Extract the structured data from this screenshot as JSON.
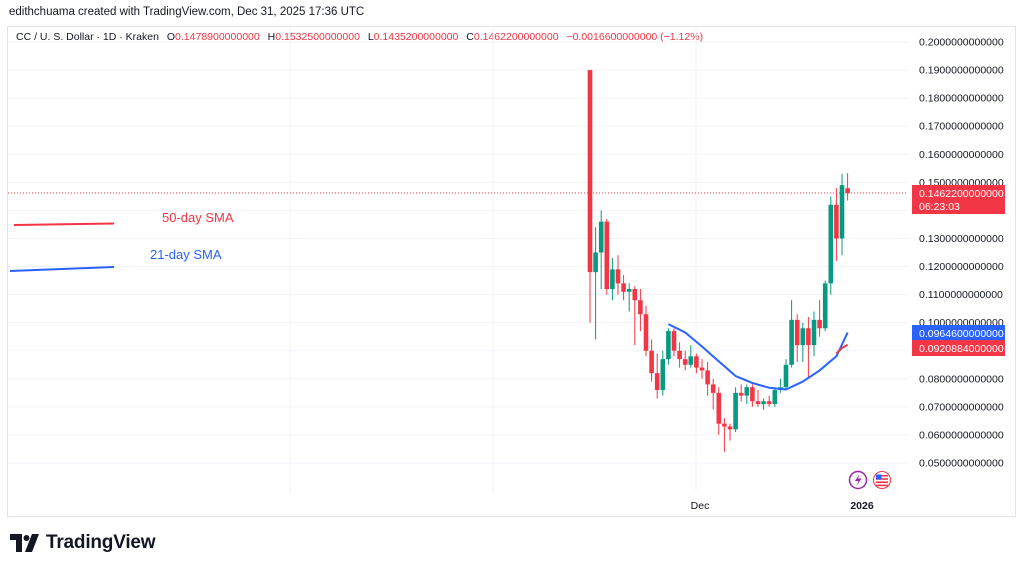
{
  "header": {
    "credit": "edithchuama created with TradingView.com, Dec 31, 2025 17:36 UTC"
  },
  "legend": {
    "symbol": "CC / U. S. Dollar · 1D · Kraken",
    "open_label": "O",
    "open": "0.1478900000000",
    "high_label": "H",
    "high": "0.1532500000000",
    "low_label": "L",
    "low": "0.1435200000000",
    "close_label": "C",
    "close": "0.1462200000000",
    "change": "−0.0016600000000 (−1.12%)"
  },
  "annotations": {
    "sma50_label": "50-day SMA",
    "sma21_label": "21-day SMA"
  },
  "price_badges": {
    "last_price": "0.1462200000000",
    "countdown": "06:23:03",
    "sma21_value": "0.0964600000000",
    "sma50_value": "0.0920884000000"
  },
  "time_labels": [
    "Dec",
    "2026"
  ],
  "brand": {
    "name": "TradingView"
  },
  "icons": [
    "lightning-icon",
    "us-flag-icon"
  ],
  "colors": {
    "up": "#089981",
    "down": "#f23645",
    "sma21": "#2962ff",
    "sma50": "#f23645",
    "badge_blue": "#2962ff"
  },
  "chart_data": {
    "type": "candlestick",
    "y_axis": {
      "min": 0.04,
      "max": 0.205,
      "ticks": [
        "0.2000000000000",
        "0.1900000000000",
        "0.1800000000000",
        "0.1700000000000",
        "0.1600000000000",
        "0.1500000000000",
        "0.1400000000000",
        "0.1300000000000",
        "0.1200000000000",
        "0.1100000000000",
        "0.1000000000000",
        "0.0900000000000",
        "0.0800000000000",
        "0.0700000000000",
        "0.0600000000000",
        "0.0500000000000"
      ]
    },
    "ohlc": [
      [
        0.19,
        0.19,
        0.1,
        0.118
      ],
      [
        0.118,
        0.134,
        0.094,
        0.125
      ],
      [
        0.125,
        0.14,
        0.112,
        0.136
      ],
      [
        0.136,
        0.137,
        0.11,
        0.112
      ],
      [
        0.112,
        0.123,
        0.108,
        0.119
      ],
      [
        0.119,
        0.124,
        0.11,
        0.114
      ],
      [
        0.114,
        0.117,
        0.108,
        0.111
      ],
      [
        0.111,
        0.114,
        0.104,
        0.112
      ],
      [
        0.112,
        0.113,
        0.092,
        0.108
      ],
      [
        0.108,
        0.112,
        0.097,
        0.103
      ],
      [
        0.103,
        0.106,
        0.088,
        0.09
      ],
      [
        0.09,
        0.094,
        0.079,
        0.082
      ],
      [
        0.082,
        0.089,
        0.073,
        0.076
      ],
      [
        0.076,
        0.09,
        0.074,
        0.087
      ],
      [
        0.087,
        0.098,
        0.085,
        0.097
      ],
      [
        0.097,
        0.098,
        0.088,
        0.09
      ],
      [
        0.09,
        0.093,
        0.084,
        0.087
      ],
      [
        0.087,
        0.09,
        0.083,
        0.085
      ],
      [
        0.085,
        0.092,
        0.084,
        0.088
      ],
      [
        0.088,
        0.089,
        0.082,
        0.084
      ],
      [
        0.084,
        0.087,
        0.08,
        0.083
      ],
      [
        0.083,
        0.086,
        0.074,
        0.078
      ],
      [
        0.078,
        0.08,
        0.069,
        0.075
      ],
      [
        0.075,
        0.077,
        0.06,
        0.064
      ],
      [
        0.064,
        0.066,
        0.054,
        0.063
      ],
      [
        0.063,
        0.064,
        0.058,
        0.062
      ],
      [
        0.062,
        0.077,
        0.061,
        0.075
      ],
      [
        0.075,
        0.078,
        0.072,
        0.074
      ],
      [
        0.074,
        0.078,
        0.071,
        0.077
      ],
      [
        0.077,
        0.078,
        0.07,
        0.072
      ],
      [
        0.072,
        0.076,
        0.07,
        0.071
      ],
      [
        0.071,
        0.073,
        0.069,
        0.072
      ],
      [
        0.072,
        0.074,
        0.07,
        0.071
      ],
      [
        0.071,
        0.077,
        0.07,
        0.076
      ],
      [
        0.076,
        0.08,
        0.075,
        0.077
      ],
      [
        0.077,
        0.087,
        0.076,
        0.085
      ],
      [
        0.085,
        0.108,
        0.084,
        0.101
      ],
      [
        0.101,
        0.103,
        0.086,
        0.092
      ],
      [
        0.092,
        0.1,
        0.086,
        0.098
      ],
      [
        0.098,
        0.102,
        0.08,
        0.092
      ],
      [
        0.092,
        0.104,
        0.088,
        0.101
      ],
      [
        0.101,
        0.108,
        0.095,
        0.098
      ],
      [
        0.098,
        0.115,
        0.097,
        0.114
      ],
      [
        0.114,
        0.145,
        0.11,
        0.142
      ],
      [
        0.142,
        0.148,
        0.122,
        0.13
      ],
      [
        0.13,
        0.153,
        0.124,
        0.149
      ],
      [
        0.1479,
        0.15325,
        0.14352,
        0.14622
      ]
    ],
    "sma21": [
      [
        14,
        0.0995
      ],
      [
        17,
        0.0965
      ],
      [
        20,
        0.0915
      ],
      [
        23,
        0.0862
      ],
      [
        26,
        0.081
      ],
      [
        29,
        0.0785
      ],
      [
        32,
        0.0768
      ],
      [
        35,
        0.0762
      ],
      [
        38,
        0.079
      ],
      [
        41,
        0.083
      ],
      [
        44,
        0.088
      ],
      [
        46,
        0.09646
      ]
    ],
    "sma50": [
      [
        44,
        0.089
      ],
      [
        45,
        0.091
      ],
      [
        46,
        0.09209
      ]
    ]
  }
}
